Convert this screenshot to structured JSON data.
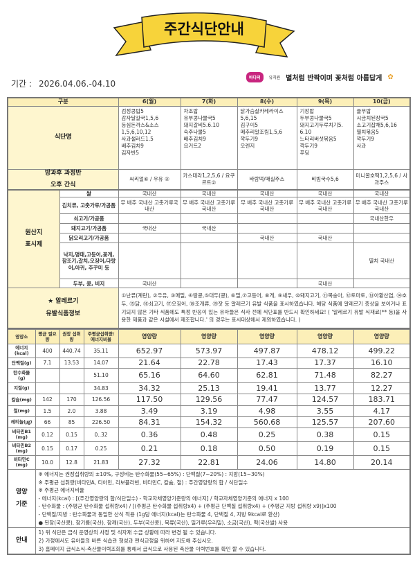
{
  "title": "주간식단안내",
  "period": {
    "label": "기간 :",
    "value": "2026.04.06.-04.10"
  },
  "brand": {
    "logo": "바다의",
    "logo_suffix": "유치원",
    "slogan": "별처럼 반짝이며 꽃처럼 아름답게"
  },
  "colors": {
    "banner": "#f7d33a",
    "label_bg": "#fef6cf",
    "header_bg": "#fcefb8"
  },
  "header": {
    "category": "구분",
    "days": [
      "6(월)",
      "7(화)",
      "8(수)",
      "9(목)",
      "10(금)"
    ]
  },
  "menu": {
    "label": "식단명",
    "days": [
      [
        "검정콩밥5",
        "감자달걀국1,5,6",
        "등심돈까스&소스 1,5,6,10,12",
        "사과샐러드1.5",
        "배추김치9",
        "김자반5"
      ],
      [
        "차조밥",
        "유부콩나물국5",
        "돼지갈비5.6.10",
        "숙주나물5",
        "배추김치9",
        "요거트2"
      ],
      [
        "닭가슴살카레라이스",
        "5,6,15",
        "김구이5",
        "메추리알조림1,5,6",
        "깍두기9",
        "오렌지"
      ],
      [
        "기장밥",
        "두부콩나물국5",
        "돼지고기두루치기5. 6.10",
        "느타리버섯볶음5",
        "깍두기9",
        "푸딩"
      ],
      [
        "율무밥",
        "시금치된장국5",
        "소고기잡채5,6,16",
        "멸치볶음5",
        "깍두기9",
        "사과"
      ]
    ]
  },
  "snack": {
    "label1": "방과후 과정반",
    "label2": "오후 간식",
    "days": [
      "씨리얼⑥ / 우유 ②",
      "카스테라1,2,5,6 / 요쿠르트②",
      "바람떡/매실주스",
      "비빔국수5,6",
      "미니꿀호떡1,2,5,6 / 사과주스"
    ]
  },
  "origin": {
    "label1": "원산지",
    "label2": "표시제",
    "rows": [
      {
        "name": "쌀",
        "days": [
          "국내산",
          "국내산",
          "국내산",
          "국내산",
          "국내산"
        ]
      },
      {
        "name": "김치류, 고춧가루/가공품",
        "days": [
          "무 배추 국내산 고춧가루국내산",
          "무 배추 국내산 고춧가루국내산",
          "무 배추 국내산 고춧가루국내산",
          "무 배추 국내산 고춧가루국내산",
          "무 배추 국내산 고춧가루국내산"
        ]
      },
      {
        "name": "쇠고기/가공품",
        "days": [
          "",
          "",
          "",
          "",
          "국내산한우"
        ]
      },
      {
        "name": "돼지고기/가공품",
        "days": [
          "국내산",
          "국내산",
          "",
          "",
          ""
        ]
      },
      {
        "name": "닭오리고기/가공품",
        "days": [
          "",
          "",
          "국내산",
          "국내산",
          ""
        ]
      },
      {
        "name": "낙지,명태,고등어,꽃게, 참조기,갈치,오징어,다랑어,아귀, 주꾸미 등",
        "days": [
          "",
          "",
          "",
          "",
          "멸치 국내산"
        ]
      },
      {
        "name": "두부, 콩, 비지",
        "days": [
          "국내산",
          "",
          "",
          "국내산",
          ""
        ]
      }
    ]
  },
  "allergy": {
    "label1": "★ 알레르기",
    "label2": "유발식품정보",
    "text": "①난류(계란), ②우유, ③메밀, ④땅콩,⑤대두(콩), ⑥밀,⑦고등어, ⑧게, ⑨새우, ⑩돼지고기, ⑪복숭아, ⑫토마토, ⑬아황산염, ⑭호두, ⑮닭, ⑯쇠고기, ⑰오징어, ⑱조개류, ⑲잣 등 알레르기 유발 식품을 표시하였습니다. 해당 식품에 알레르기 증상을 보이거나 표기되지 않은 기타 식품에도 특정 반응이 있는 유아들은 식사 전에 식단표를 반드시 확인하세요! ( '알레르기 유발 식재료(** 등)을 사용한 제품과 같은 시설에서 제조합니다.' 의 경우는 표시대상에서 제외하였습니다. )"
  },
  "nutrition": {
    "headers": [
      "영양소",
      "평균 필요량",
      "권장 섭취량",
      "주평균섭취량/ 에너지비율",
      "영양량",
      "영양량",
      "영양량",
      "영양량",
      "영양량"
    ],
    "rows": [
      [
        "에너지 (kcal)",
        "400",
        "440.74",
        "35.11",
        "652.97",
        "573.97",
        "497.87",
        "478.12",
        "499.22"
      ],
      [
        "단백질(g)",
        "7.1",
        "13.53",
        "14.07",
        "21.64",
        "22.78",
        "17.43",
        "17.37",
        "16.10"
      ],
      [
        "탄수화물 (g)",
        "",
        "",
        "51.10",
        "65.16",
        "64.60",
        "62.81",
        "71.48",
        "82.27"
      ],
      [
        "지질(g)",
        "",
        "",
        "34.83",
        "34.32",
        "25.13",
        "19.41",
        "13.77",
        "12.27"
      ],
      [
        "칼슘(mg)",
        "142",
        "170",
        "126.56",
        "117.50",
        "129.56",
        "77.47",
        "124.57",
        "183.71"
      ],
      [
        "철(mg)",
        "1.5",
        "2.0",
        "3.88",
        "3.49",
        "3.19",
        "4.98",
        "3.55",
        "4.17"
      ],
      [
        "레티놀(㎍)",
        "66",
        "85",
        "226.50",
        "84.31",
        "154.32",
        "560.68",
        "125.57",
        "207.60"
      ],
      [
        "비타민B1 (mg)",
        "0.12",
        "0.15",
        "0..32",
        "0.36",
        "0.48",
        "0.25",
        "0.38",
        "0.15"
      ],
      [
        "비타민B2 (mg)",
        "0.15",
        "0.17",
        "0.25",
        "0.21",
        "0.18",
        "0.50",
        "0.19",
        "0.15"
      ],
      [
        "비타민C (mg)",
        "10.0",
        "12.8",
        "21.83",
        "27.32",
        "22.81",
        "24.06",
        "14.80",
        "20.14"
      ]
    ]
  },
  "standard": {
    "label1": "영양",
    "label2": "기준",
    "lines": [
      "※ 에너지는 권장섭취량의 ±10%, 구성비는 탄수화물(55~65%) : 단백질(7~20%) : 지방(15~30%)",
      "※ 주평균 섭취량(비타민A, 티아민, 리보플라빈, 비타민C, 칼슘, 철) : 주간영양량의 합 / 식단일수",
      "※ 주평균 에너지비율",
      "- 에너지(kcal) : [(주간영양량의 합/식단일수) - 학교자체영양기준량의 에너지] / 학교자체영양기준의 에너지 x 100",
      "- 탄수화물 : (주평균 탄수화물 섭취량x4) / [(주평균 탄수화물 섭취량x4) + (주평균 단백질 섭취량x4) + (주평균 지방 섭취량 x9)]x100",
      "- 단백질/지방 : 탄수화물과 동일한 산식 적용 (1g당 에너지(kcal)는 탄수화물 4, 단백질 4, 지방 9kcal로 환산)",
      "● 된장(국산콩), 참기름(국산), 참깨(국산), 두부(국산콩), 묵류(국산), 밀가루(우리밀), 소금(국산), 떡(국산쌀) 사용"
    ]
  },
  "notice": {
    "label": "안내",
    "lines": [
      "1) 위 식단은 급식 운영상의 사정 및 식자재 수급 상황에 따라 변경 될 수 있습니다.",
      "2) 가정에서도 유아들의 바른 식습관 형성과 편식교정을 위하여 지도해 주십시오.",
      "3) 홈페이지 급식소식-축산물이력조회를 통해서 급식으로 사용된 축산물 이력번호를 확인 할 수 있습니다."
    ]
  }
}
